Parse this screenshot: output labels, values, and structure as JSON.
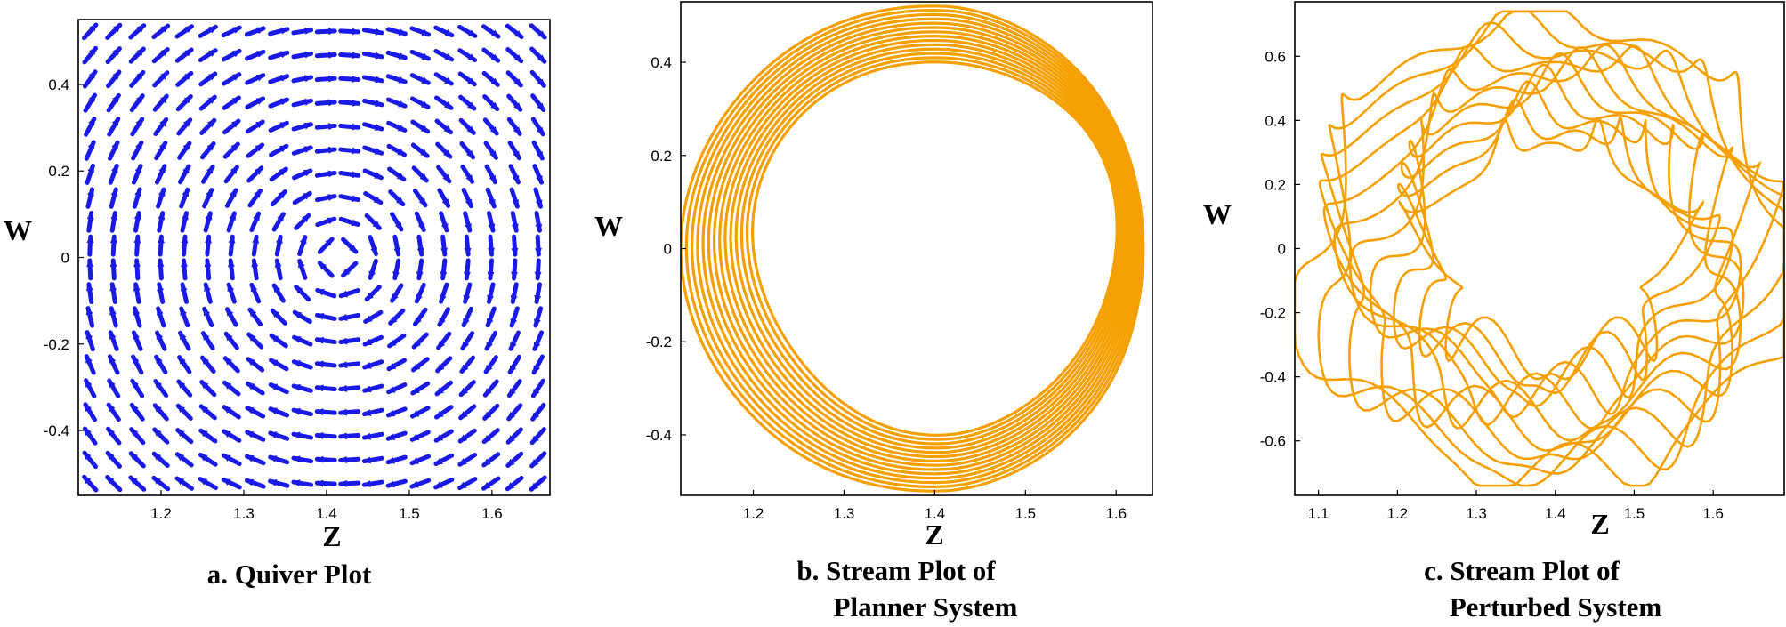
{
  "colors": {
    "quiver": "#1a1ae6",
    "stream": "#f5a000",
    "frame": "#000000"
  },
  "chart_data": [
    {
      "type": "quiver",
      "xlabel": "Z",
      "ylabel": "W",
      "xlim": [
        1.1,
        1.67
      ],
      "ylim": [
        -0.55,
        0.55
      ],
      "xticks": [
        "1.2",
        "1.3",
        "1.4",
        "1.5",
        "1.6"
      ],
      "yticks": [
        "0.4",
        "0.2",
        "0",
        "-0.2",
        "-0.4"
      ],
      "center": [
        1.414,
        0
      ],
      "grid_nx": 20,
      "grid_ny": 20,
      "caption": [
        "a. Quiver Plot"
      ]
    },
    {
      "type": "line",
      "xlabel": "Z",
      "ylabel": "W",
      "xlim": [
        1.12,
        1.64
      ],
      "ylim": [
        -0.53,
        0.53
      ],
      "xticks": [
        "1.2",
        "1.3",
        "1.4",
        "1.5",
        "1.6"
      ],
      "yticks": [
        "0.4",
        "0.2",
        "0",
        "-0.2",
        "-0.4"
      ],
      "center": [
        1.414,
        0
      ],
      "outer_extent": {
        "z": [
          1.12,
          1.63
        ],
        "w": [
          -0.52,
          0.52
        ]
      },
      "inner_extent": {
        "z": [
          1.2,
          1.6
        ],
        "w": [
          -0.4,
          0.4
        ]
      },
      "caption": [
        "b. Stream Plot of",
        "Planner System"
      ]
    },
    {
      "type": "line",
      "xlabel": "Z",
      "ylabel": "W",
      "xlim": [
        1.07,
        1.69
      ],
      "ylim": [
        -0.77,
        0.77
      ],
      "xticks": [
        "1.1",
        "1.2",
        "1.3",
        "1.4",
        "1.5",
        "1.6"
      ],
      "yticks": [
        "0.6",
        "0.4",
        "0.2",
        "0",
        "-0.2",
        "-0.4",
        "-0.6"
      ],
      "center": [
        1.395,
        0
      ],
      "outer_extent": {
        "z": [
          1.07,
          1.69
        ],
        "w": [
          -0.74,
          0.74
        ]
      },
      "caption": [
        "c. Stream Plot of",
        "Perturbed System"
      ]
    }
  ]
}
